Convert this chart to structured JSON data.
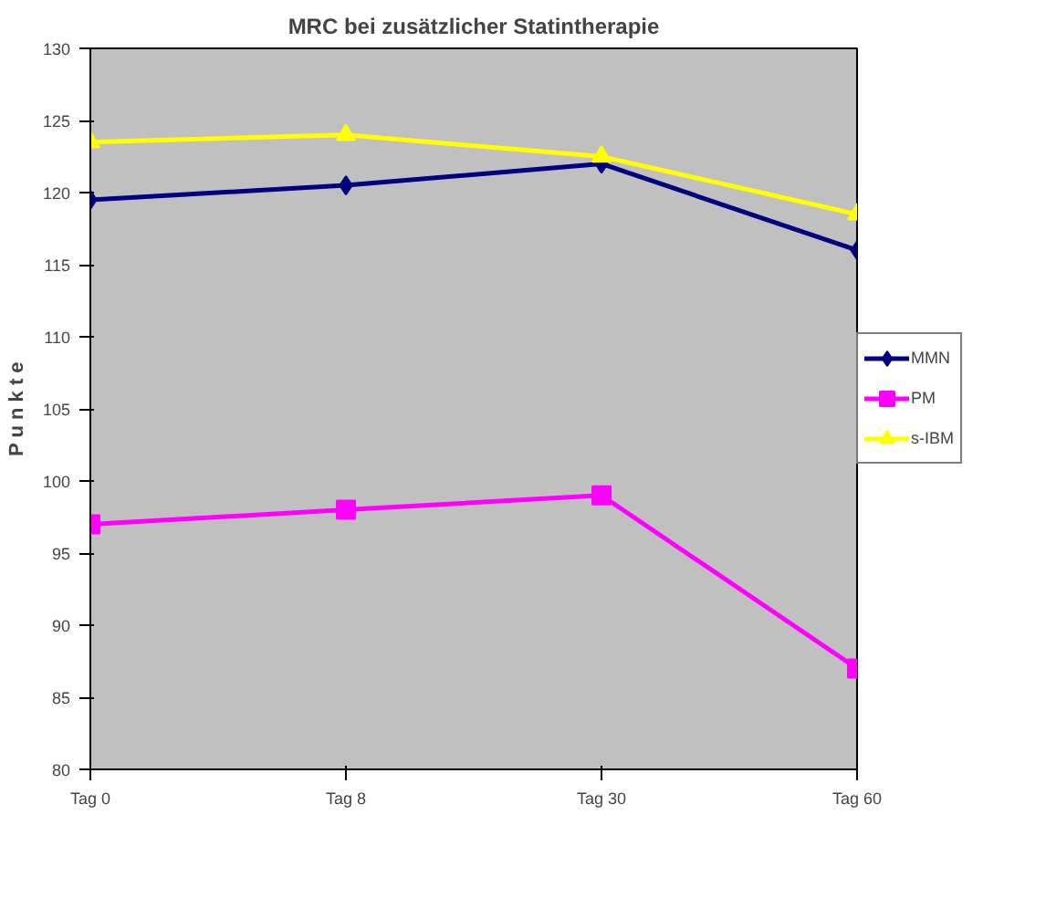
{
  "chart_data": {
    "type": "line",
    "title": "MRC bei zusätzlicher Statintherapie",
    "ylabel": "P u n k t e",
    "categories": [
      "Tag 0",
      "Tag 8",
      "Tag 30",
      "Tag 60"
    ],
    "series": [
      {
        "name": "MMN",
        "color": "#000080",
        "marker": "diamond",
        "values": [
          119.5,
          120.5,
          122,
          116
        ]
      },
      {
        "name": "PM",
        "color": "#ff00ff",
        "marker": "square",
        "values": [
          97,
          98,
          99,
          87
        ]
      },
      {
        "name": "s-IBM",
        "color": "#ffff00",
        "marker": "triangle",
        "values": [
          123.5,
          124,
          122.5,
          118.5
        ]
      }
    ],
    "ylim": [
      80,
      130
    ],
    "yticks": [
      80,
      85,
      90,
      95,
      100,
      105,
      110,
      115,
      120,
      125,
      130
    ],
    "grid": false,
    "legend": "right"
  }
}
